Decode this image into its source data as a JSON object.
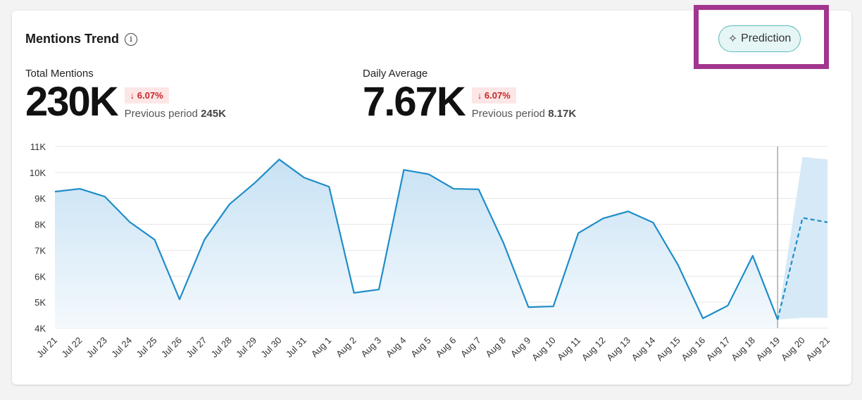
{
  "header": {
    "title": "Mentions Trend",
    "info_icon": "info-icon",
    "prediction_label": "Prediction",
    "prediction_icon": "sparkle-icon",
    "highlight_color": "#a2368f"
  },
  "metrics": [
    {
      "label": "Total Mentions",
      "value": "230K",
      "change": "6.07%",
      "direction": "down",
      "previous_label": "Previous period",
      "previous_value": "245K"
    },
    {
      "label": "Daily Average",
      "value": "7.67K",
      "change": "6.07%",
      "direction": "down",
      "previous_label": "Previous period",
      "previous_value": "8.17K"
    }
  ],
  "chart_data": {
    "type": "line",
    "title": "",
    "xlabel": "",
    "ylabel": "",
    "ylim": [
      4000,
      11000
    ],
    "yticks": [
      {
        "v": 11000,
        "label": "11K"
      },
      {
        "v": 10000,
        "label": "10K"
      },
      {
        "v": 9000,
        "label": "9K"
      },
      {
        "v": 8000,
        "label": "8K"
      },
      {
        "v": 7000,
        "label": "7K"
      },
      {
        "v": 6000,
        "label": "6K"
      },
      {
        "v": 5000,
        "label": "5K"
      },
      {
        "v": 4000,
        "label": "4K"
      }
    ],
    "categories": [
      "Jul 21",
      "Jul 22",
      "Jul 23",
      "Jul 24",
      "Jul 25",
      "Jul 26",
      "Jul 27",
      "Jul 28",
      "Jul 29",
      "Jul 30",
      "Jul 31",
      "Aug 1",
      "Aug 2",
      "Aug 3",
      "Aug 4",
      "Aug 5",
      "Aug 6",
      "Aug 7",
      "Aug 8",
      "Aug 9",
      "Aug 10",
      "Aug 11",
      "Aug 12",
      "Aug 13",
      "Aug 14",
      "Aug 15",
      "Aug 16",
      "Aug 17",
      "Aug 18",
      "Aug 19",
      "Aug 20",
      "Aug 21"
    ],
    "series": [
      {
        "values": [
          9260,
          9370,
          9070,
          8090,
          7410,
          5110,
          7410,
          8770,
          9580,
          10500,
          9800,
          9450,
          5360,
          5490,
          10100,
          9930,
          9370,
          9350,
          7280,
          4810,
          4840,
          7660,
          8230,
          8500,
          8070,
          6440,
          4380,
          4870,
          6790,
          4330,
          null,
          null
        ],
        "color": "#1f8dc8"
      }
    ],
    "prediction": {
      "categories": [
        "Aug 19",
        "Aug 20",
        "Aug 21"
      ],
      "values": [
        4330,
        8250,
        8080
      ],
      "lower": [
        4330,
        4400,
        4400
      ],
      "upper": [
        4330,
        10600,
        10500
      ],
      "style": "dashed",
      "band_color": "#d6e9f6"
    },
    "grid": true,
    "forecast_start": "Aug 19"
  }
}
